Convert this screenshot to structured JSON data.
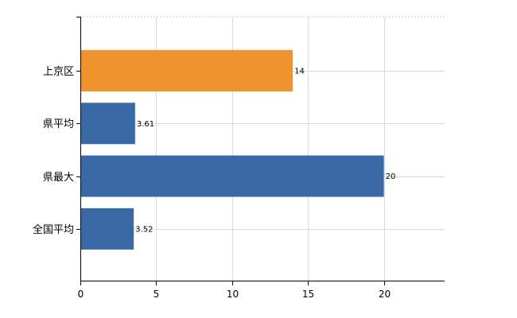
{
  "chart_data": {
    "type": "bar",
    "orientation": "horizontal",
    "categories": [
      "上京区",
      "県平均",
      "県最大",
      "全国平均"
    ],
    "values": [
      14,
      3.61,
      20,
      3.52
    ],
    "data_labels": [
      "14",
      "3.61",
      "20",
      "3.52"
    ],
    "colors": [
      "#f0932e",
      "#3a6aa6",
      "#3a6aa6",
      "#3a6aa6"
    ],
    "xlim": [
      0,
      24
    ],
    "xticks": [
      0,
      5,
      10,
      15,
      20
    ],
    "xtick_labels": [
      "0",
      "5",
      "10",
      "15",
      "20"
    ],
    "title": "",
    "xlabel": "",
    "ylabel": "",
    "grid": true,
    "legend": "none"
  }
}
